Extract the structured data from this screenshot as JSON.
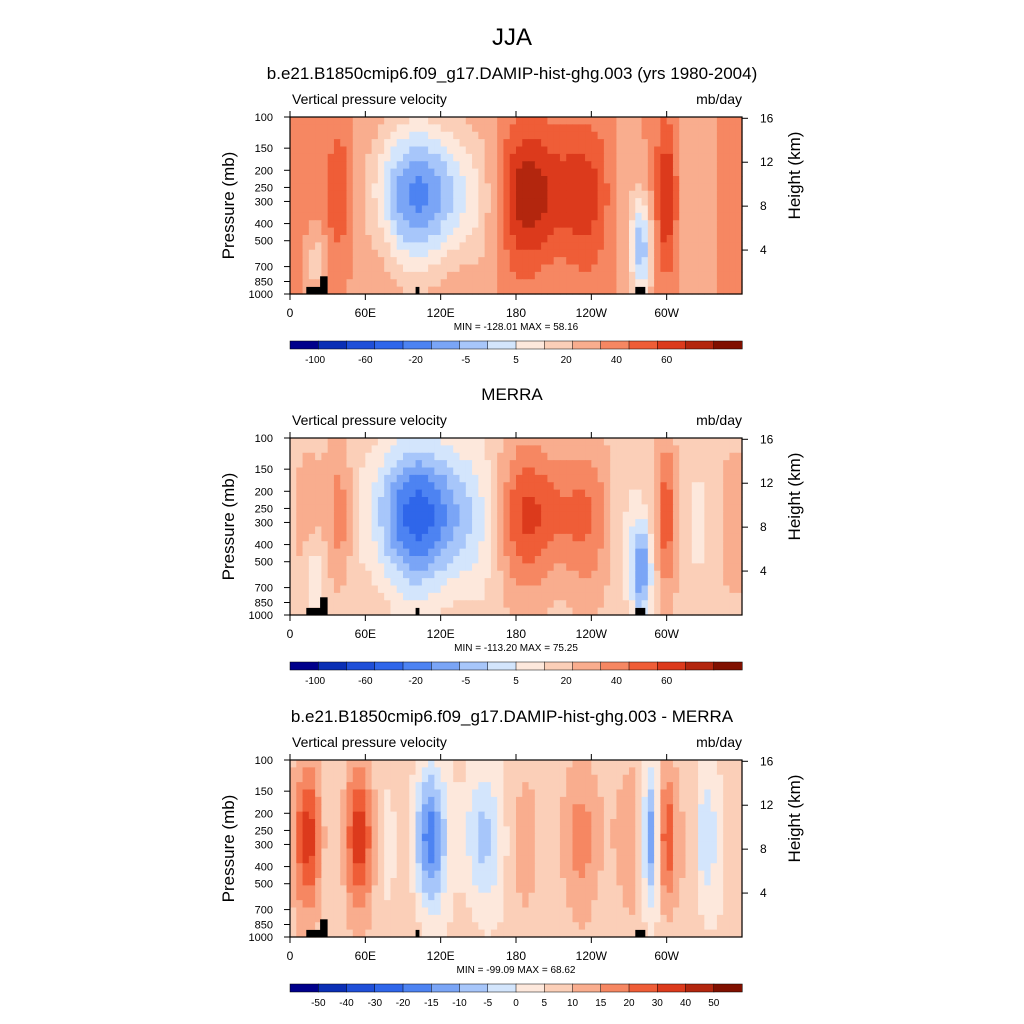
{
  "figure": {
    "title": "JJA"
  },
  "chart_data": [
    {
      "type": "heatmap",
      "title": "b.e21.B1850cmip6.f09_g17.DAMIP-hist-ghg.003 (yrs 1980-2004)",
      "left_label": "Vertical pressure velocity",
      "units": "mb/day",
      "ylabel": "Pressure (mb)",
      "y2label": "Height (km)",
      "x_ticks": [
        "0",
        "60E",
        "120E",
        "180",
        "120W",
        "60W"
      ],
      "y_ticks": [
        "100",
        "150",
        "200",
        "250",
        "300",
        "400",
        "500",
        "700",
        "850",
        "1000"
      ],
      "y2_ticks": [
        "16",
        "12",
        "8",
        "4"
      ],
      "stats": "MIN = -128.01  MAX =  58.16",
      "colorbar_labels": [
        "-100",
        "-60",
        "-20",
        "-5",
        "5",
        "20",
        "40",
        "60"
      ],
      "colormap": [
        "#00008b",
        "#0a2fb5",
        "#1f4fd8",
        "#2f66ea",
        "#4d83f2",
        "#7aa5f6",
        "#a7c6fa",
        "#d3e5fc",
        "#fde8dc",
        "#fbcfb8",
        "#f9ad8e",
        "#f68762",
        "#ef5d37",
        "#dc3a1c",
        "#b3260e",
        "#801000"
      ],
      "value_range": [
        -128.01,
        58.16
      ]
    },
    {
      "type": "heatmap",
      "title": "MERRA",
      "left_label": "Vertical pressure velocity",
      "units": "mb/day",
      "ylabel": "Pressure (mb)",
      "y2label": "Height (km)",
      "x_ticks": [
        "0",
        "60E",
        "120E",
        "180",
        "120W",
        "60W"
      ],
      "y_ticks": [
        "100",
        "150",
        "200",
        "250",
        "300",
        "400",
        "500",
        "700",
        "850",
        "1000"
      ],
      "y2_ticks": [
        "16",
        "12",
        "8",
        "4"
      ],
      "stats": "MIN = -113.20  MAX =  75.25",
      "colorbar_labels": [
        "-100",
        "-60",
        "-20",
        "-5",
        "5",
        "20",
        "40",
        "60"
      ],
      "colormap": [
        "#00008b",
        "#0a2fb5",
        "#1f4fd8",
        "#2f66ea",
        "#4d83f2",
        "#7aa5f6",
        "#a7c6fa",
        "#d3e5fc",
        "#fde8dc",
        "#fbcfb8",
        "#f9ad8e",
        "#f68762",
        "#ef5d37",
        "#dc3a1c",
        "#b3260e",
        "#801000"
      ],
      "value_range": [
        -113.2,
        75.25
      ]
    },
    {
      "type": "heatmap",
      "title": "b.e21.B1850cmip6.f09_g17.DAMIP-hist-ghg.003 - MERRA",
      "left_label": "Vertical pressure velocity",
      "units": "mb/day",
      "ylabel": "Pressure (mb)",
      "y2label": "Height (km)",
      "x_ticks": [
        "0",
        "60E",
        "120E",
        "180",
        "120W",
        "60W"
      ],
      "y_ticks": [
        "100",
        "150",
        "200",
        "250",
        "300",
        "400",
        "500",
        "700",
        "850",
        "1000"
      ],
      "y2_ticks": [
        "16",
        "12",
        "8",
        "4"
      ],
      "stats": "MIN = -99.09  MAX =  68.62",
      "colorbar_labels": [
        "-50",
        "-40",
        "-30",
        "-20",
        "-15",
        "-10",
        "-5",
        "0",
        "5",
        "10",
        "15",
        "20",
        "30",
        "40",
        "50"
      ],
      "colormap": [
        "#00008b",
        "#0a2fb5",
        "#1f4fd8",
        "#2f66ea",
        "#4d83f2",
        "#7aa5f6",
        "#a7c6fa",
        "#d3e5fc",
        "#fde8dc",
        "#fbcfb8",
        "#f9ad8e",
        "#f68762",
        "#ef5d37",
        "#dc3a1c",
        "#b3260e",
        "#801000"
      ],
      "value_range": [
        -99.09,
        68.62
      ]
    }
  ]
}
